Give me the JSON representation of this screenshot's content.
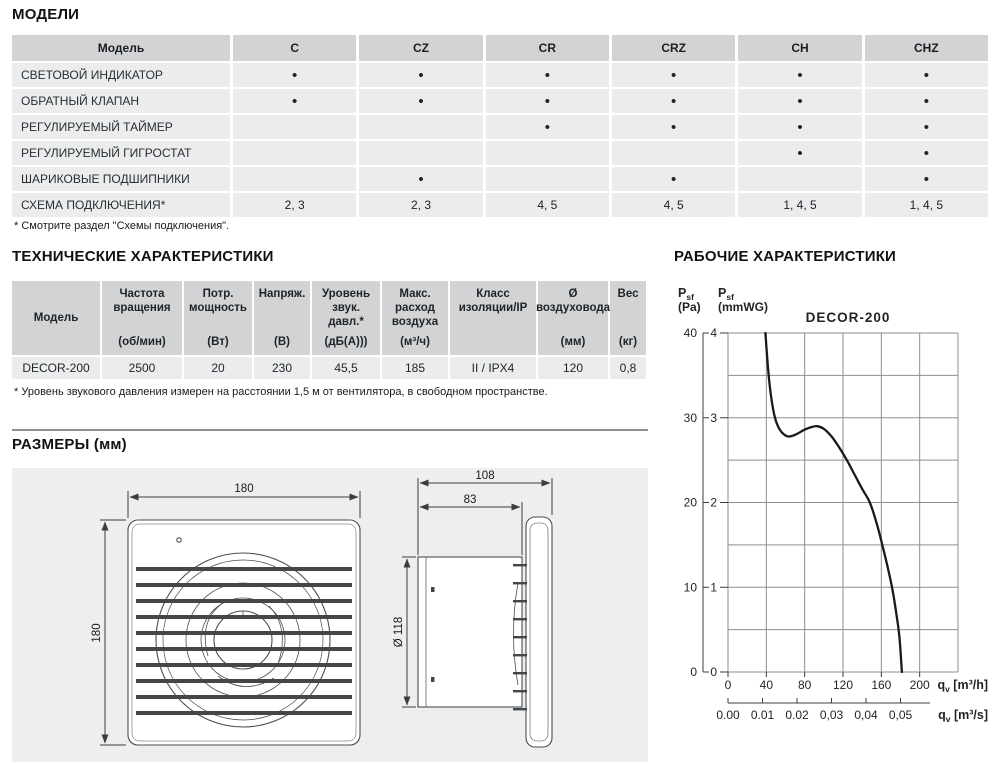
{
  "sections": {
    "models": {
      "title": "МОДЕЛИ"
    },
    "tech": {
      "title": "ТЕХНИЧЕСКИЕ ХАРАКТЕРИСТИКИ"
    },
    "dimensions": {
      "title": "РАЗМЕРЫ (мм)"
    },
    "performance": {
      "title": "РАБОЧИЕ ХАРАКТЕРИСТИКИ"
    }
  },
  "models_table": {
    "columns": [
      "Модель",
      "C",
      "CZ",
      "CR",
      "CRZ",
      "CH",
      "CHZ"
    ],
    "rows": [
      {
        "label": "СВЕТОВОЙ ИНДИКАТОР",
        "cells": [
          "•",
          "•",
          "•",
          "•",
          "•",
          "•"
        ]
      },
      {
        "label": "ОБРАТНЫЙ КЛАПАН",
        "cells": [
          "•",
          "•",
          "•",
          "•",
          "•",
          "•"
        ]
      },
      {
        "label": "РЕГУЛИРУЕМЫЙ ТАЙМЕР",
        "cells": [
          "",
          "",
          "•",
          "•",
          "•",
          "•"
        ]
      },
      {
        "label": "РЕГУЛИРУЕМЫЙ ГИГРОСТАТ",
        "cells": [
          "",
          "",
          "",
          "",
          "•",
          "•"
        ]
      },
      {
        "label": "ШАРИКОВЫЕ ПОДШИПНИКИ",
        "cells": [
          "",
          "•",
          "",
          "•",
          "",
          "•"
        ]
      },
      {
        "label": "СХЕМА ПОДКЛЮЧЕНИЯ*",
        "cells": [
          "2, 3",
          "2, 3",
          "4, 5",
          "4, 5",
          "1, 4, 5",
          "1, 4, 5"
        ]
      }
    ],
    "footnote": "* Смотрите раздел \"Схемы подключения\"."
  },
  "tech_table": {
    "columns": [
      {
        "name": "Модель",
        "unit": ""
      },
      {
        "name": "Частота вращения",
        "unit": "(об/мин)"
      },
      {
        "name": "Потр. мощность",
        "unit": "(Вт)"
      },
      {
        "name": "Напряж.",
        "unit": "(В)"
      },
      {
        "name": "Уровень звук. давл.*",
        "unit": "(дБ(А)))"
      },
      {
        "name": "Макс. расход воздуха",
        "unit": "(м³/ч)"
      },
      {
        "name": "Класс изоляции/IP",
        "unit": ""
      },
      {
        "name": "Ø воздуховода",
        "unit": "(мм)"
      },
      {
        "name": "Вес",
        "unit": "(кг)"
      }
    ],
    "row": [
      "DECOR-200",
      "2500",
      "20",
      "230",
      "45,5",
      "185",
      "II / IPX4",
      "120",
      "0,8"
    ],
    "footnote": "* Уровень звукового давления измерен на расстоянии 1,5 м от вентилятора, в свободном пространстве."
  },
  "dimensions": {
    "front_width": "180",
    "front_height": "180",
    "side_total": "108",
    "side_duct": "83",
    "duct_diameter": "Ø 118"
  },
  "chart_data": {
    "type": "line",
    "title": "DECOR-200",
    "curve_color": "#1a1a1a",
    "grid": true,
    "ylim_mmwg": [
      0,
      4
    ],
    "ylim_pa": [
      0,
      40
    ],
    "xlim_m3h": [
      0,
      240
    ],
    "y_axis_pa": {
      "sym": "P",
      "sub": "sf",
      "unit": "(Pa)",
      "ticks": [
        40,
        30,
        20,
        10,
        0
      ]
    },
    "y_axis_mmwg": {
      "sym": "P",
      "sub": "sf",
      "unit": "(mmWG)",
      "ticks": [
        4,
        3,
        2,
        1,
        0
      ]
    },
    "x_axis_m3h": {
      "sym": "q",
      "sub": "v",
      "rest": " [m³/h]",
      "ticks": [
        0,
        40,
        80,
        120,
        160,
        200
      ]
    },
    "x_axis_m3s": {
      "sym": "q",
      "sub": "v",
      "rest": " [m³/s]",
      "tick_labels": [
        "0.00",
        "0.01",
        "0.02",
        "0,03",
        "0,04",
        "0,05"
      ],
      "tick_values_m3h": [
        0,
        36,
        72,
        108,
        144,
        180
      ]
    },
    "series": [
      {
        "name": "DECOR-200",
        "x_m3h": [
          39,
          42,
          45,
          49,
          54,
          60,
          65,
          72,
          80,
          87,
          93,
          100,
          108,
          116,
          124,
          132,
          140,
          148,
          155,
          161,
          167,
          172,
          176,
          179,
          181.5
        ],
        "y_mmwg": [
          4.0,
          3.55,
          3.25,
          3.0,
          2.86,
          2.79,
          2.78,
          2.81,
          2.86,
          2.89,
          2.9,
          2.87,
          2.78,
          2.65,
          2.5,
          2.33,
          2.16,
          2.0,
          1.76,
          1.5,
          1.22,
          0.95,
          0.66,
          0.4,
          0.0
        ]
      }
    ]
  }
}
